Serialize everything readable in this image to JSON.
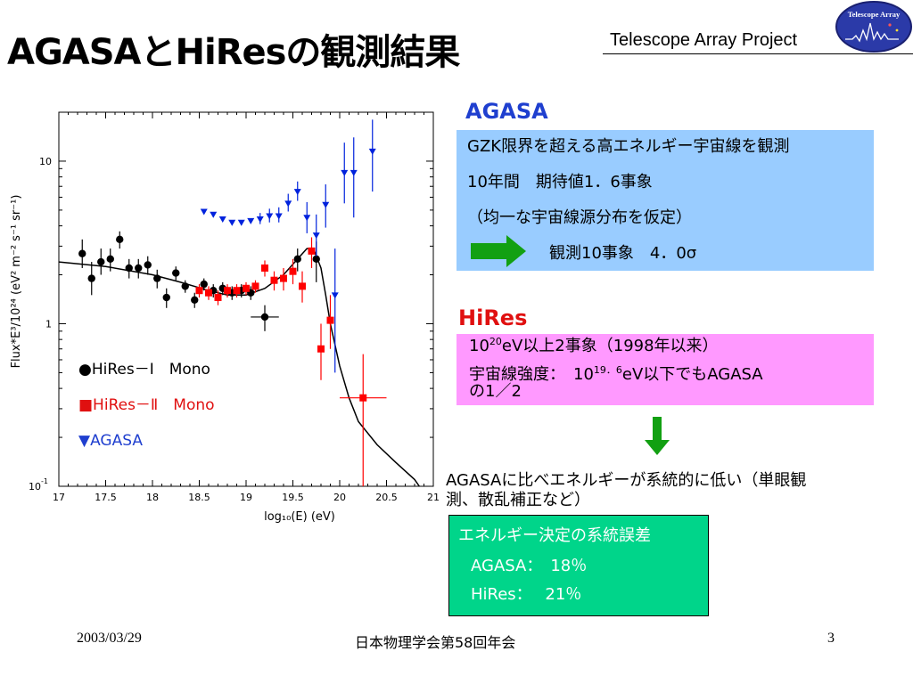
{
  "slide": {
    "title": "AGASAとHiResの観測結果",
    "project": "Telescope Array Project",
    "logo_text": "Telescope Array",
    "footer_date": "2003/03/29",
    "footer_center": "日本物理学会第58回年会",
    "page_number": "3"
  },
  "agasa": {
    "heading": "AGASA",
    "line1": "GZK限界を超える高エネルギー宇宙線を観測",
    "line2": "10年間　期待値1．6事象",
    "line3": "（均一な宇宙線源分布を仮定）",
    "arrow_text": "観測10事象　4．0σ"
  },
  "hires": {
    "heading": "HiRes",
    "line1_pre": "10",
    "line1_sup": "20",
    "line1_post": "eV以上2事象（1998年以来）",
    "line2_pre": "宇宙線強度：　10",
    "line2_sup": "19．6",
    "line2_post": "eV以下でもAGASA",
    "line3": "の1／2"
  },
  "conclusion": {
    "line1": "AGASAに比べエネルギーが系統的に低い（単眼観",
    "line2": "測、散乱補正など）"
  },
  "systematics": {
    "title": "エネルギー決定の系統誤差",
    "agasa": "AGASA：　18％",
    "hires": "HiRes：　 21％"
  },
  "colors": {
    "hires1": "#000000",
    "hires2": "#ff0000",
    "agasa": "#0022dd",
    "agasa_box": "#99ccff",
    "hires_box": "#ff99ff",
    "sys_box": "#00d58a",
    "arrow": "#12a012"
  },
  "chart_data": {
    "type": "scatter",
    "xlabel": "log₁₀(E) (eV)",
    "ylabel": "Flux*E³/10²⁴ (eV² m⁻² s⁻¹ sr⁻¹)",
    "xlim": [
      17,
      21
    ],
    "ylim": [
      0.1,
      20
    ],
    "yscale": "log",
    "x_ticks": [
      "17",
      "17.5",
      "18",
      "18.5",
      "19",
      "19.5",
      "20",
      "20.5",
      "21"
    ],
    "y_ticks": [
      {
        "value": 0.1,
        "base": "10",
        "exp": "-1"
      },
      {
        "value": 1,
        "base": "1",
        "exp": ""
      },
      {
        "value": 10,
        "base": "10",
        "exp": ""
      }
    ],
    "legend": [
      {
        "symbol": "●",
        "text": "HiRes－Ⅰ　Mono",
        "color": "#000000"
      },
      {
        "symbol": "■",
        "text": "HiRes－Ⅱ　Mono",
        "color": "#e01010"
      },
      {
        "symbol": "▼",
        "text": "AGASA",
        "color": "#1f3fcf"
      }
    ],
    "series": [
      {
        "name": "HiRes－Ⅰ　Mono",
        "marker": "circle",
        "points": [
          {
            "x": 17.25,
            "y": 2.7,
            "lo": 2.2,
            "hi": 3.3
          },
          {
            "x": 17.35,
            "y": 1.9,
            "lo": 1.5,
            "hi": 2.4
          },
          {
            "x": 17.45,
            "y": 2.4,
            "lo": 2.0,
            "hi": 2.9
          },
          {
            "x": 17.55,
            "y": 2.5,
            "lo": 2.1,
            "hi": 2.9
          },
          {
            "x": 17.65,
            "y": 3.3,
            "lo": 2.9,
            "hi": 3.7
          },
          {
            "x": 17.75,
            "y": 2.2,
            "lo": 1.9,
            "hi": 2.5
          },
          {
            "x": 17.85,
            "y": 2.2,
            "lo": 1.9,
            "hi": 2.5
          },
          {
            "x": 17.95,
            "y": 2.3,
            "lo": 2.0,
            "hi": 2.6
          },
          {
            "x": 18.05,
            "y": 1.9,
            "lo": 1.65,
            "hi": 2.15
          },
          {
            "x": 18.15,
            "y": 1.45,
            "lo": 1.25,
            "hi": 1.65
          },
          {
            "x": 18.25,
            "y": 2.05,
            "lo": 1.85,
            "hi": 2.25
          },
          {
            "x": 18.35,
            "y": 1.7,
            "lo": 1.55,
            "hi": 1.85
          },
          {
            "x": 18.45,
            "y": 1.4,
            "lo": 1.25,
            "hi": 1.55
          },
          {
            "x": 18.55,
            "y": 1.75,
            "lo": 1.6,
            "hi": 1.9
          },
          {
            "x": 18.65,
            "y": 1.6,
            "lo": 1.45,
            "hi": 1.75
          },
          {
            "x": 18.75,
            "y": 1.65,
            "lo": 1.5,
            "hi": 1.8
          },
          {
            "x": 18.85,
            "y": 1.55,
            "lo": 1.4,
            "hi": 1.7
          },
          {
            "x": 18.95,
            "y": 1.6,
            "lo": 1.45,
            "hi": 1.75
          },
          {
            "x": 19.05,
            "y": 1.55,
            "lo": 1.4,
            "hi": 1.7
          },
          {
            "x": 19.2,
            "y": 1.1,
            "lo": 0.9,
            "hi": 1.3,
            "xlo": 19.05,
            "xhi": 19.35
          },
          {
            "x": 19.55,
            "y": 2.5,
            "lo": 2.1,
            "hi": 2.9
          },
          {
            "x": 19.75,
            "y": 2.5,
            "lo": 1.8,
            "hi": 3.2
          }
        ]
      },
      {
        "name": "HiRes－Ⅱ　Mono",
        "marker": "square",
        "points": [
          {
            "x": 18.5,
            "y": 1.6,
            "lo": 1.45,
            "hi": 1.75
          },
          {
            "x": 18.6,
            "y": 1.55,
            "lo": 1.4,
            "hi": 1.7
          },
          {
            "x": 18.7,
            "y": 1.45,
            "lo": 1.3,
            "hi": 1.6
          },
          {
            "x": 18.8,
            "y": 1.6,
            "lo": 1.45,
            "hi": 1.75
          },
          {
            "x": 18.9,
            "y": 1.6,
            "lo": 1.45,
            "hi": 1.75
          },
          {
            "x": 19.0,
            "y": 1.65,
            "lo": 1.5,
            "hi": 1.8
          },
          {
            "x": 19.1,
            "y": 1.7,
            "lo": 1.55,
            "hi": 1.85
          },
          {
            "x": 19.2,
            "y": 2.2,
            "lo": 1.95,
            "hi": 2.45
          },
          {
            "x": 19.3,
            "y": 1.85,
            "lo": 1.6,
            "hi": 2.1
          },
          {
            "x": 19.4,
            "y": 1.9,
            "lo": 1.6,
            "hi": 2.2
          },
          {
            "x": 19.5,
            "y": 2.1,
            "lo": 1.75,
            "hi": 2.5
          },
          {
            "x": 19.6,
            "y": 1.7,
            "lo": 1.35,
            "hi": 2.1
          },
          {
            "x": 19.7,
            "y": 2.8,
            "lo": 2.2,
            "hi": 3.4
          },
          {
            "x": 19.8,
            "y": 0.7,
            "lo": 0.45,
            "hi": 1.0
          },
          {
            "x": 19.9,
            "y": 1.05,
            "lo": 0.7,
            "hi": 1.5
          },
          {
            "x": 20.25,
            "y": 0.35,
            "lo": 0.1,
            "hi": 0.65,
            "xlo": 20.0,
            "xhi": 20.5
          }
        ]
      },
      {
        "name": "AGASA",
        "marker": "triangle-down",
        "points": [
          {
            "x": 18.55,
            "y": 4.9
          },
          {
            "x": 18.65,
            "y": 4.7
          },
          {
            "x": 18.75,
            "y": 4.4
          },
          {
            "x": 18.85,
            "y": 4.2
          },
          {
            "x": 18.95,
            "y": 4.2
          },
          {
            "x": 19.05,
            "y": 4.3
          },
          {
            "x": 19.15,
            "y": 4.4,
            "lo": 4.1,
            "hi": 4.8
          },
          {
            "x": 19.25,
            "y": 4.6,
            "lo": 4.2,
            "hi": 5.1
          },
          {
            "x": 19.35,
            "y": 4.6,
            "lo": 4.2,
            "hi": 5.2
          },
          {
            "x": 19.45,
            "y": 5.5,
            "lo": 4.9,
            "hi": 6.3
          },
          {
            "x": 19.55,
            "y": 6.5,
            "lo": 5.7,
            "hi": 7.5
          },
          {
            "x": 19.65,
            "y": 4.5,
            "lo": 3.6,
            "hi": 5.6
          },
          {
            "x": 19.75,
            "y": 3.5,
            "lo": 2.6,
            "hi": 4.7
          },
          {
            "x": 19.85,
            "y": 5.4,
            "lo": 3.9,
            "hi": 7.2
          },
          {
            "x": 19.95,
            "y": 1.5,
            "lo": 0.5,
            "hi": 2.9
          },
          {
            "x": 20.05,
            "y": 8.5,
            "lo": 5.5,
            "hi": 13.0
          },
          {
            "x": 20.15,
            "y": 8.5,
            "lo": 4.5,
            "hi": 14.0
          },
          {
            "x": 20.35,
            "y": 11.5,
            "lo": 6.5,
            "hi": 18.0
          }
        ]
      }
    ],
    "model_curve": [
      [
        17.0,
        2.4
      ],
      [
        17.5,
        2.25
      ],
      [
        18.0,
        2.0
      ],
      [
        18.3,
        1.8
      ],
      [
        18.6,
        1.6
      ],
      [
        18.8,
        1.5
      ],
      [
        19.0,
        1.5
      ],
      [
        19.2,
        1.65
      ],
      [
        19.4,
        2.0
      ],
      [
        19.55,
        2.5
      ],
      [
        19.65,
        2.9
      ],
      [
        19.72,
        2.9
      ],
      [
        19.8,
        2.2
      ],
      [
        19.85,
        1.5
      ],
      [
        19.9,
        1.0
      ],
      [
        20.0,
        0.55
      ],
      [
        20.1,
        0.35
      ],
      [
        20.2,
        0.25
      ],
      [
        20.4,
        0.18
      ],
      [
        20.6,
        0.14
      ],
      [
        20.8,
        0.11
      ],
      [
        20.85,
        0.1
      ]
    ]
  }
}
